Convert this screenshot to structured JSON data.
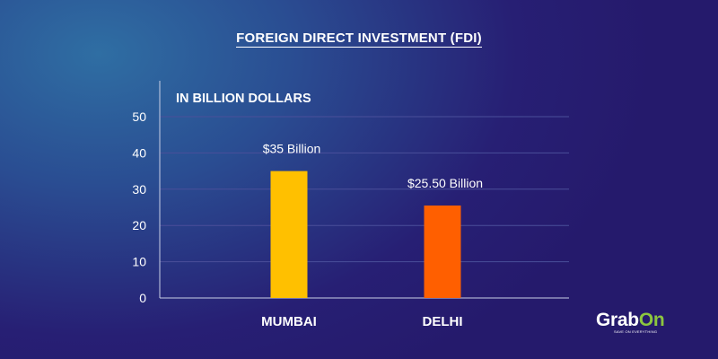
{
  "title": "FOREIGN DIRECT INVESTMENT (FDI)",
  "chart_data": {
    "type": "bar",
    "title": "FOREIGN DIRECT INVESTMENT (FDI)",
    "subtitle": "IN BILLION DOLLARS",
    "categories": [
      "MUMBAI",
      "DELHI"
    ],
    "values": [
      35,
      25.5
    ],
    "data_labels": [
      "$35 Billion",
      "$25.50 Billion"
    ],
    "colors": [
      "#ffc000",
      "#ff5f00"
    ],
    "yticks": [
      0,
      10,
      20,
      30,
      40,
      50
    ],
    "ylim": [
      0,
      50
    ],
    "grid": true,
    "xlabel": "",
    "ylabel": ""
  },
  "brand": {
    "word_a": "Grab",
    "word_b": "On",
    "tagline": "SAVE ON EVERYTHING",
    "accent": "#8cc63f"
  }
}
